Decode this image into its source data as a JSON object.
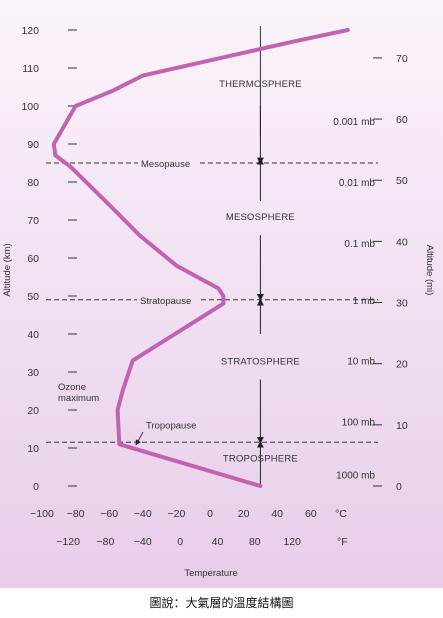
{
  "figure": {
    "left_axis_title": "Altitude (km)",
    "right_axis_title": "Altitude (mi)",
    "x_axis_title": "Temperature",
    "celsius_unit": "°C",
    "fahrenheit_unit": "°F",
    "caption": "圖說：大氣層的溫度結構圖",
    "curve_color": "#c064b0",
    "background_colors": [
      "#fbf4fb",
      "#e8cdea"
    ]
  },
  "chart_data": {
    "type": "line",
    "km_ticks": [
      "0",
      "10",
      "20",
      "30",
      "40",
      "50",
      "60",
      "70",
      "80",
      "90",
      "100",
      "110",
      "120"
    ],
    "km_values": [
      0,
      10,
      20,
      30,
      40,
      50,
      60,
      70,
      80,
      90,
      100,
      110,
      120
    ],
    "mi_ticks": [
      {
        "label": "0",
        "mi": 0
      },
      {
        "label": "10",
        "mi": 10
      },
      {
        "label": "20",
        "mi": 20
      },
      {
        "label": "30",
        "mi": 30
      },
      {
        "label": "40",
        "mi": 40
      },
      {
        "label": "50",
        "mi": 50
      },
      {
        "label": "60",
        "mi": 60
      },
      {
        "label": "70",
        "mi": 70
      }
    ],
    "celsius_ticks": [
      {
        "label": "−100",
        "value": -100
      },
      {
        "label": "−80",
        "value": -80
      },
      {
        "label": "−60",
        "value": -60
      },
      {
        "label": "−40",
        "value": -40
      },
      {
        "label": "−20",
        "value": -20
      },
      {
        "label": "0",
        "value": 0
      },
      {
        "label": "20",
        "value": 20
      },
      {
        "label": "40",
        "value": 40
      },
      {
        "label": "60",
        "value": 60
      }
    ],
    "fahrenheit_ticks": [
      {
        "label": "−120",
        "value": -120
      },
      {
        "label": "−80",
        "value": -80
      },
      {
        "label": "−40",
        "value": -40
      },
      {
        "label": "0",
        "value": 0
      },
      {
        "label": "40",
        "value": 40
      },
      {
        "label": "80",
        "value": 80
      },
      {
        "label": "120",
        "value": 120
      }
    ],
    "pressure_ticks": [
      {
        "label": "1000 mb",
        "km": 3
      },
      {
        "label": "100 mb",
        "km": 17
      },
      {
        "label": "10 mb",
        "km": 33
      },
      {
        "label": "1 mb",
        "km": 49
      },
      {
        "label": "0.1 mb",
        "km": 64
      },
      {
        "label": "0.01 mb",
        "km": 80
      },
      {
        "label": "0.001 mb",
        "km": 96
      }
    ],
    "temperature_profile_c": {
      "altitude_km": [
        0,
        11,
        20,
        25,
        33,
        48,
        50,
        52,
        58,
        66,
        74,
        84,
        87,
        90,
        100,
        104,
        108,
        111,
        114,
        117,
        120
      ],
      "temp_c": [
        30,
        -54,
        -55,
        -52,
        -46,
        8,
        8,
        5,
        -20,
        -42,
        -60,
        -83,
        -92,
        -93,
        -80,
        -58,
        -40,
        -10,
        20,
        50,
        82
      ]
    },
    "boundaries": [
      {
        "name": "Tropopause",
        "km": 11.5
      },
      {
        "name": "Stratopause",
        "km": 49
      },
      {
        "name": "Mesopause",
        "km": 85
      }
    ],
    "layers": [
      {
        "name": "TROPOSPHERE",
        "km": 7.5
      },
      {
        "name": "STRATOSPHERE",
        "km": 33
      },
      {
        "name": "MESOSPHERE",
        "km": 71
      },
      {
        "name": "THERMOSPHERE",
        "km": 106
      }
    ],
    "annotation_ozone": [
      "Ozone",
      "maximum"
    ],
    "ylim_km": [
      0,
      120
    ],
    "xlim_c": [
      -100,
      70
    ]
  }
}
